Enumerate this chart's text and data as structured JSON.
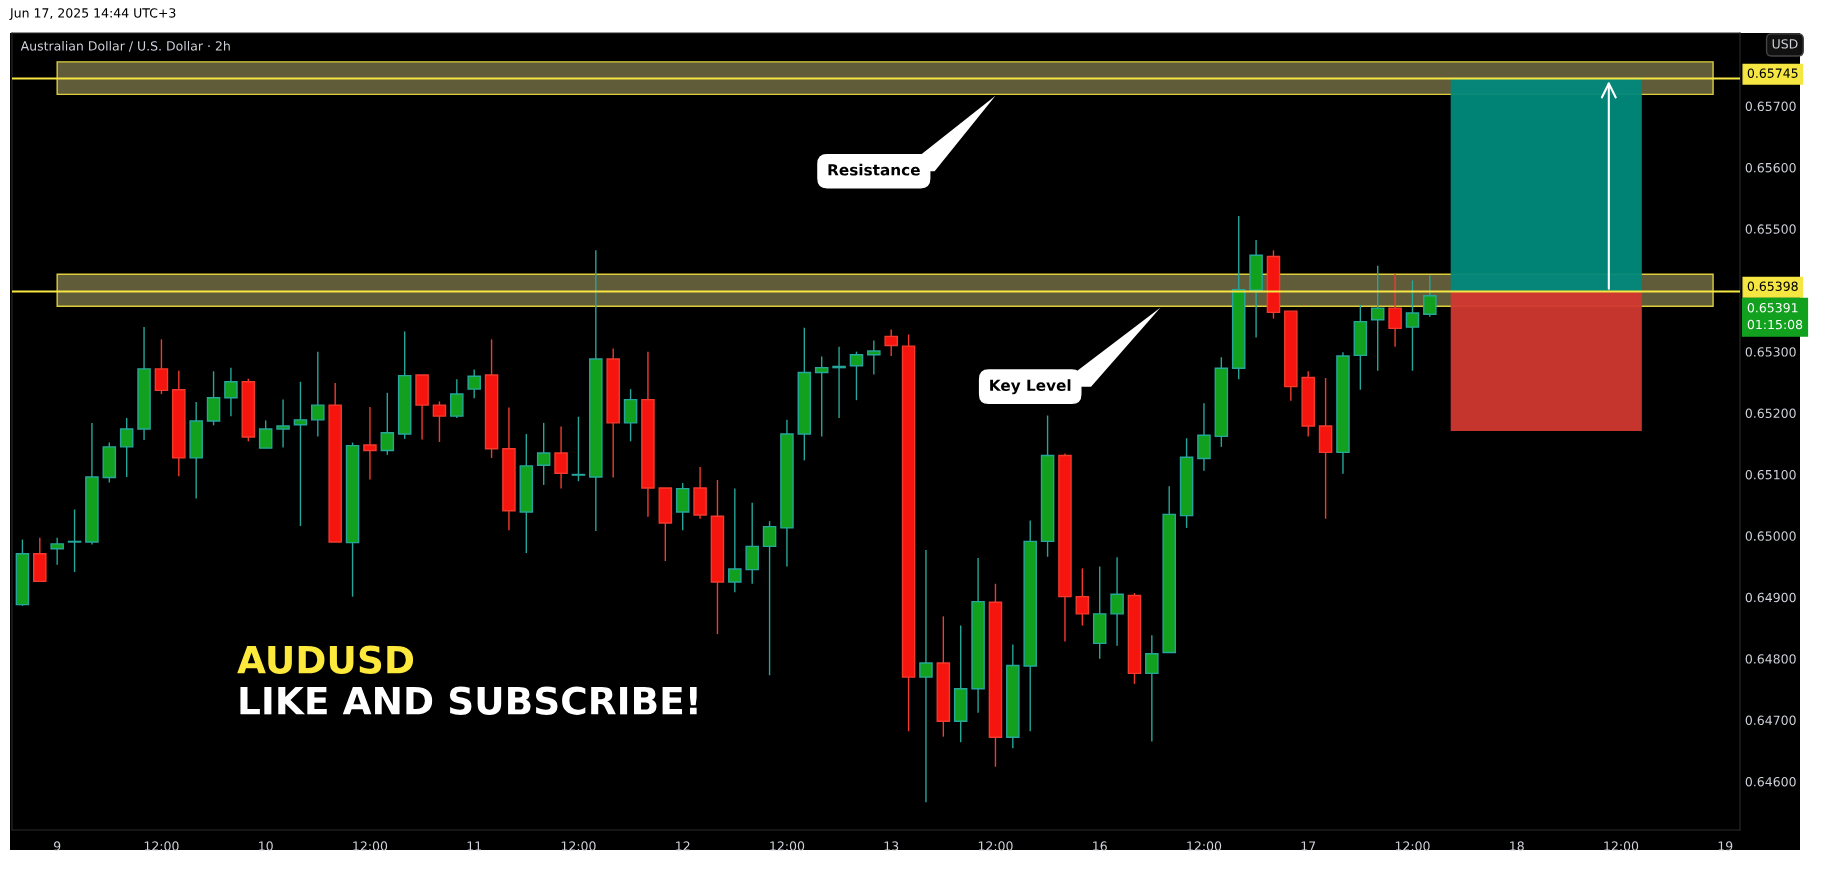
{
  "chart_data": {
    "type": "candlestick",
    "title": "Australian Dollar / U.S. Dollar · 2h",
    "ylabel": "USD",
    "categories": [
      null,
      null,
      "9",
      null,
      null,
      null,
      null,
      null,
      "12:00",
      null,
      null,
      null,
      null,
      null,
      "10",
      null,
      null,
      null,
      null,
      null,
      "12:00",
      null,
      null,
      null,
      null,
      null,
      "11",
      null,
      null,
      null,
      null,
      null,
      "12:00",
      null,
      null,
      null,
      null,
      null,
      "12",
      null,
      null,
      null,
      null,
      null,
      "12:00",
      null,
      null,
      null,
      null,
      null,
      "13",
      null,
      null,
      null,
      null,
      null,
      "12:00",
      null,
      null,
      null,
      null,
      null,
      "16",
      null,
      null,
      null,
      null,
      null,
      "12:00",
      null,
      null,
      null,
      null,
      null,
      "17",
      null,
      null,
      null,
      null,
      null,
      "12:00",
      null,
      null,
      null,
      null,
      null,
      "18",
      null,
      null,
      null,
      null,
      null,
      "12:00",
      null,
      null,
      null,
      null,
      null,
      "19"
    ],
    "ohlc": [
      [
        0.64888,
        0.64994,
        0.64886,
        0.64971
      ],
      [
        0.64971,
        0.64997,
        0.64925,
        0.64926
      ],
      [
        0.64979,
        0.64997,
        0.64953,
        0.64987
      ],
      [
        0.6499,
        0.65043,
        0.64941,
        0.64991
      ],
      [
        0.6499,
        0.65184,
        0.64986,
        0.65096
      ],
      [
        0.65095,
        0.65152,
        0.65087,
        0.65145
      ],
      [
        0.65145,
        0.65192,
        0.65096,
        0.65174
      ],
      [
        0.65174,
        0.6534,
        0.65156,
        0.65272
      ],
      [
        0.65272,
        0.6532,
        0.65231,
        0.65237
      ],
      [
        0.65238,
        0.65269,
        0.65097,
        0.65127
      ],
      [
        0.65127,
        0.65218,
        0.65061,
        0.65187
      ],
      [
        0.65187,
        0.65268,
        0.6518,
        0.65225
      ],
      [
        0.65225,
        0.65274,
        0.65195,
        0.65251
      ],
      [
        0.65251,
        0.65256,
        0.65154,
        0.65161
      ],
      [
        0.65143,
        0.65188,
        0.65143,
        0.65174
      ],
      [
        0.65174,
        0.65222,
        0.65144,
        0.65179
      ],
      [
        0.65181,
        0.65251,
        0.65016,
        0.65189
      ],
      [
        0.65189,
        0.653,
        0.65162,
        0.65213
      ],
      [
        0.65213,
        0.65249,
        0.6499,
        0.6499
      ],
      [
        0.64989,
        0.65152,
        0.64901,
        0.65147
      ],
      [
        0.65148,
        0.6521,
        0.65092,
        0.65139
      ],
      [
        0.65139,
        0.65233,
        0.65132,
        0.65168
      ],
      [
        0.65166,
        0.65333,
        0.65158,
        0.65261
      ],
      [
        0.65262,
        0.65262,
        0.65157,
        0.65213
      ],
      [
        0.65213,
        0.65219,
        0.65153,
        0.65195
      ],
      [
        0.65195,
        0.65255,
        0.65192,
        0.65231
      ],
      [
        0.65239,
        0.65271,
        0.65224,
        0.6526
      ],
      [
        0.65262,
        0.6532,
        0.65127,
        0.65142
      ],
      [
        0.65142,
        0.65209,
        0.65009,
        0.65041
      ],
      [
        0.65039,
        0.65166,
        0.64972,
        0.65114
      ],
      [
        0.65115,
        0.65184,
        0.65083,
        0.65135
      ],
      [
        0.65135,
        0.65178,
        0.65077,
        0.65102
      ],
      [
        0.65099,
        0.65194,
        0.65089,
        0.651
      ],
      [
        0.65096,
        0.65465,
        0.65008,
        0.65288
      ],
      [
        0.65288,
        0.65305,
        0.65095,
        0.65184
      ],
      [
        0.65184,
        0.65239,
        0.65154,
        0.65222
      ],
      [
        0.65222,
        0.653,
        0.65031,
        0.65078
      ],
      [
        0.65078,
        0.65078,
        0.64959,
        0.65021
      ],
      [
        0.65039,
        0.65086,
        0.65009,
        0.65077
      ],
      [
        0.65078,
        0.65112,
        0.65028,
        0.65034
      ],
      [
        0.65032,
        0.65091,
        0.6484,
        0.64925
      ],
      [
        0.64925,
        0.65077,
        0.64908,
        0.64946
      ],
      [
        0.64945,
        0.65054,
        0.64922,
        0.64983
      ],
      [
        0.64983,
        0.65024,
        0.64773,
        0.65015
      ],
      [
        0.65013,
        0.65189,
        0.6495,
        0.65166
      ],
      [
        0.65166,
        0.65339,
        0.65123,
        0.65266
      ],
      [
        0.65266,
        0.65292,
        0.65162,
        0.65274
      ],
      [
        0.65274,
        0.65308,
        0.65192,
        0.65276
      ],
      [
        0.65277,
        0.653,
        0.65221,
        0.65295
      ],
      [
        0.65295,
        0.65318,
        0.65263,
        0.65301
      ],
      [
        0.65325,
        0.65336,
        0.65293,
        0.6531
      ],
      [
        0.65309,
        0.65328,
        0.64682,
        0.6477
      ],
      [
        0.6477,
        0.64977,
        0.64566,
        0.64793
      ],
      [
        0.64793,
        0.64869,
        0.64673,
        0.64698
      ],
      [
        0.64698,
        0.64854,
        0.64664,
        0.64751
      ],
      [
        0.64751,
        0.64964,
        0.64712,
        0.64893
      ],
      [
        0.64892,
        0.64922,
        0.64624,
        0.64672
      ],
      [
        0.64672,
        0.64823,
        0.64654,
        0.64789
      ],
      [
        0.64788,
        0.65025,
        0.64682,
        0.64991
      ],
      [
        0.64991,
        0.65196,
        0.64966,
        0.65131
      ],
      [
        0.65131,
        0.65134,
        0.64828,
        0.64901
      ],
      [
        0.64901,
        0.64947,
        0.64854,
        0.64873
      ],
      [
        0.64825,
        0.6495,
        0.648,
        0.64873
      ],
      [
        0.64873,
        0.64965,
        0.64821,
        0.64905
      ],
      [
        0.64903,
        0.64907,
        0.64759,
        0.64776
      ],
      [
        0.64776,
        0.64838,
        0.64665,
        0.64808
      ],
      [
        0.6481,
        0.65081,
        0.6481,
        0.65035
      ],
      [
        0.65033,
        0.65159,
        0.65013,
        0.65128
      ],
      [
        0.65126,
        0.65216,
        0.65106,
        0.65164
      ],
      [
        0.65162,
        0.65291,
        0.65145,
        0.65273
      ],
      [
        0.65273,
        0.65521,
        0.65255,
        0.65401
      ],
      [
        0.654,
        0.65482,
        0.65323,
        0.65457
      ],
      [
        0.65455,
        0.65465,
        0.65354,
        0.65364
      ],
      [
        0.65366,
        0.65366,
        0.6522,
        0.65243
      ],
      [
        0.65258,
        0.65268,
        0.65162,
        0.65179
      ],
      [
        0.65179,
        0.65257,
        0.65028,
        0.65136
      ],
      [
        0.65136,
        0.65299,
        0.65101,
        0.65293
      ],
      [
        0.65294,
        0.65376,
        0.65238,
        0.65349
      ],
      [
        0.65352,
        0.6544,
        0.65269,
        0.65371
      ],
      [
        0.65371,
        0.65427,
        0.65308,
        0.65338
      ],
      [
        0.6534,
        0.65416,
        0.65269,
        0.65363
      ],
      [
        0.65361,
        0.65424,
        0.65357,
        0.65391
      ],
      null,
      null,
      null,
      null,
      null,
      null,
      null,
      null,
      null,
      null,
      null,
      null,
      null,
      null,
      null,
      null,
      null
    ],
    "ylim": [
      0.64521,
      0.65819
    ],
    "yticks": [
      {
        "value": 0.646,
        "label": "0.64600"
      },
      {
        "value": 0.647,
        "label": "0.64700"
      },
      {
        "value": 0.648,
        "label": "0.64800"
      },
      {
        "value": 0.649,
        "label": "0.64900"
      },
      {
        "value": 0.65,
        "label": "0.65000"
      },
      {
        "value": 0.651,
        "label": "0.65100"
      },
      {
        "value": 0.652,
        "label": "0.65200"
      },
      {
        "value": 0.653,
        "label": "0.65300"
      },
      {
        "value": 0.655,
        "label": "0.65500"
      },
      {
        "value": 0.656,
        "label": "0.65600"
      },
      {
        "value": 0.657,
        "label": "0.65700"
      }
    ],
    "ref_lines": [
      {
        "axis": "y",
        "value": 0.65745,
        "label": "0.65745",
        "color": "#f5e642"
      },
      {
        "axis": "y",
        "value": 0.65398,
        "label": "0.65398",
        "color": "#f5e642"
      }
    ],
    "bands": [
      {
        "axis": "y",
        "from": 0.65719,
        "to": 0.65772,
        "color": "#6b6540"
      },
      {
        "axis": "y",
        "from": 0.65374,
        "to": 0.65426,
        "color": "#6b6540"
      },
      {
        "axis": "y",
        "from": 0.65398,
        "to": 0.65745,
        "color": "#00897b"
      },
      {
        "axis": "y",
        "from": 0.65171,
        "to": 0.65398,
        "color": "#d1382f"
      }
    ],
    "annotations": [
      "Jun 17, 2025 14:44 UTC+3",
      "AUDUSD",
      "LIKE AND SUBSCRIBE!",
      "0.65391\n01:15:08",
      "Resistance",
      "Key Level"
    ],
    "grid": false
  }
}
